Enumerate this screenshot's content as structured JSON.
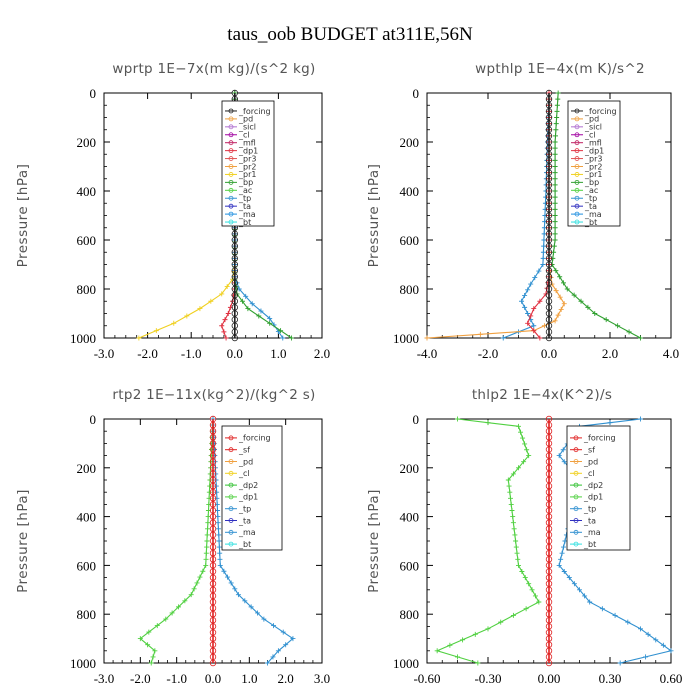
{
  "figure_title": "taus_oob  BUDGET at311E,56N",
  "colors": {
    "forcing": "#202020",
    "pd": "#e0a0e0",
    "sicl": "#b070d0",
    "cl_a": "#a000a0",
    "mfl": "#c02060",
    "dp1_a": "#e03040",
    "pr3": "#e05050",
    "pr2": "#f0a040",
    "pr1": "#f0d020",
    "bp": "#30a030",
    "ac": "#50d040",
    "tp": "#3090d0",
    "ta": "#3030c0",
    "ma": "#2090e0",
    "bt": "#30e0e0",
    "red": "#e02020",
    "orange": "#f0a040",
    "yellow": "#f0d020",
    "green": "#30c030",
    "lightgreen": "#50d040",
    "blue": "#3090d0",
    "navy": "#3030c0",
    "cyan": "#30e0e0"
  },
  "chart_data": [
    {
      "type": "line",
      "title": "wprtp   1E−7x(m kg)/(s^2 kg)",
      "ylabel": "Pressure [hPa]",
      "xlim": [
        -3.0,
        2.0
      ],
      "ylim": [
        1000,
        0
      ],
      "xticks": [
        "-3.0",
        "-2.0",
        "-1.0",
        "0.0",
        "1.0",
        "2.0"
      ],
      "xtick_values": [
        -3.0,
        -2.0,
        -1.0,
        0.0,
        1.0,
        2.0
      ],
      "yticks": [
        "0",
        "200",
        "400",
        "600",
        "800",
        "1000"
      ],
      "ytick_values": [
        0,
        200,
        400,
        600,
        800,
        1000
      ],
      "legend": [
        "_forcing",
        "_pd",
        "_sicl",
        "_cl",
        "_mfl",
        "_dp1",
        "_pr3",
        "_pr2",
        "_pr1",
        "_bp",
        "_ac",
        "_tp",
        "_ta",
        "_ma",
        "_bt"
      ],
      "series": [
        {
          "name": "_pr1",
          "color": "#f0d020",
          "x": [
            0,
            0,
            -0.05,
            -0.3,
            -0.8,
            -1.4,
            -2.2
          ],
          "y": [
            0,
            700,
            760,
            820,
            880,
            940,
            1000
          ]
        },
        {
          "name": "_dp1",
          "color": "#e03040",
          "x": [
            0,
            0,
            -0.05,
            -0.15,
            -0.3,
            -0.2
          ],
          "y": [
            0,
            800,
            850,
            900,
            950,
            1000
          ]
        },
        {
          "name": "_tp",
          "color": "#3090d0",
          "x": [
            0,
            0,
            0.1,
            0.4,
            0.8,
            1.1
          ],
          "y": [
            0,
            750,
            800,
            860,
            920,
            1000
          ]
        },
        {
          "name": "_bp",
          "color": "#30a030",
          "x": [
            0,
            0,
            0.05,
            0.3,
            0.8,
            1.3
          ],
          "y": [
            0,
            760,
            820,
            880,
            940,
            1000
          ]
        },
        {
          "name": "_forcing",
          "color": "#202020",
          "x": [
            0,
            0
          ],
          "y": [
            0,
            1000
          ]
        }
      ]
    },
    {
      "type": "line",
      "title": "wpthlp   1E−4x(m K)/s^2",
      "ylabel": "Pressure [hPa]",
      "xlim": [
        -4.0,
        4.0
      ],
      "ylim": [
        1000,
        0
      ],
      "xticks": [
        "-4.0",
        "-2.0",
        "0.0",
        "2.0",
        "4.0"
      ],
      "xtick_values": [
        -4.0,
        -2.0,
        0.0,
        2.0,
        4.0
      ],
      "yticks": [
        "0",
        "200",
        "400",
        "600",
        "800",
        "1000"
      ],
      "ytick_values": [
        0,
        200,
        400,
        600,
        800,
        1000
      ],
      "legend": [
        "_forcing",
        "_pd",
        "_sicl",
        "_cl",
        "_mfl",
        "_dp1",
        "_pr3",
        "_pr2",
        "_pr1",
        "_bp",
        "_ac",
        "_tp",
        "_ta",
        "_ma",
        "_bt"
      ],
      "series": [
        {
          "name": "_bp",
          "color": "#30a030",
          "x": [
            0.3,
            0.2,
            0.2,
            0.1,
            0.6,
            1.5,
            3.0
          ],
          "y": [
            0,
            200,
            600,
            700,
            800,
            900,
            1000
          ]
        },
        {
          "name": "_tp",
          "color": "#3090d0",
          "x": [
            0,
            -0.1,
            -0.2,
            -0.6,
            -0.9,
            -0.5,
            -1.5
          ],
          "y": [
            0,
            400,
            700,
            780,
            850,
            950,
            1000
          ]
        },
        {
          "name": "_pr2",
          "color": "#f0a040",
          "x": [
            0,
            0,
            0.1,
            0.5,
            0.2,
            -0.5,
            -4.0
          ],
          "y": [
            0,
            700,
            780,
            860,
            930,
            970,
            1000
          ]
        },
        {
          "name": "_dp1",
          "color": "#e03040",
          "x": [
            0,
            0,
            -0.1,
            -0.5,
            -0.7,
            -0.3
          ],
          "y": [
            0,
            750,
            820,
            880,
            940,
            1000
          ]
        },
        {
          "name": "_forcing",
          "color": "#202020",
          "x": [
            0,
            0
          ],
          "y": [
            0,
            1000
          ]
        }
      ]
    },
    {
      "type": "line",
      "title": "rtp2   1E−11x(kg^2)/(kg^2 s)",
      "ylabel": "Pressure [hPa]",
      "xlim": [
        -3.0,
        3.0
      ],
      "ylim": [
        1000,
        0
      ],
      "xticks": [
        "-3.0",
        "-2.0",
        "-1.0",
        "0.0",
        "1.0",
        "2.0",
        "3.0"
      ],
      "xtick_values": [
        -3.0,
        -2.0,
        -1.0,
        0.0,
        1.0,
        2.0,
        3.0
      ],
      "yticks": [
        "0",
        "200",
        "400",
        "600",
        "800",
        "1000"
      ],
      "ytick_values": [
        0,
        200,
        400,
        600,
        800,
        1000
      ],
      "legend": [
        "_forcing",
        "_sf",
        "_pd",
        "_cl",
        "_dp2",
        "_dp1",
        "_tp",
        "_ta",
        "_ma",
        "_bt"
      ],
      "series": [
        {
          "name": "_dp1",
          "color": "#50d040",
          "x": [
            0,
            -0.2,
            -0.6,
            -1.3,
            -2.0,
            -1.6,
            -1.7
          ],
          "y": [
            0,
            600,
            720,
            820,
            900,
            950,
            1000
          ]
        },
        {
          "name": "_tp",
          "color": "#3090d0",
          "x": [
            0,
            0.2,
            0.7,
            1.4,
            2.2,
            1.8,
            1.5
          ],
          "y": [
            0,
            600,
            720,
            820,
            900,
            950,
            1000
          ]
        },
        {
          "name": "_forcing",
          "color": "#e02020",
          "x": [
            0,
            0
          ],
          "y": [
            0,
            1000
          ]
        }
      ]
    },
    {
      "type": "line",
      "title": "thlp2   1E−4x(K^2)/s",
      "ylabel": "Pressure [hPa]",
      "xlim": [
        -0.6,
        0.6
      ],
      "ylim": [
        1000,
        0
      ],
      "xticks": [
        "-0.60",
        "-0.30",
        "0.00",
        "0.30",
        "0.60"
      ],
      "xtick_values": [
        -0.6,
        -0.3,
        0.0,
        0.3,
        0.6
      ],
      "yticks": [
        "0",
        "200",
        "400",
        "600",
        "800",
        "1000"
      ],
      "ytick_values": [
        0,
        200,
        400,
        600,
        800,
        1000
      ],
      "legend": [
        "_forcing",
        "_sf",
        "_pd",
        "_cl",
        "_dp2",
        "_dp1",
        "_tp",
        "_ta",
        "_ma",
        "_bt"
      ],
      "series": [
        {
          "name": "_dp1",
          "color": "#50d040",
          "x": [
            -0.45,
            -0.15,
            -0.1,
            -0.2,
            -0.15,
            -0.05,
            -0.3,
            -0.55,
            -0.35
          ],
          "y": [
            0,
            30,
            150,
            250,
            600,
            750,
            860,
            950,
            1000
          ]
        },
        {
          "name": "_tp",
          "color": "#3090d0",
          "x": [
            0.45,
            0.15,
            0.05,
            0.15,
            0.05,
            0.2,
            0.45,
            0.6,
            0.35
          ],
          "y": [
            0,
            30,
            150,
            250,
            600,
            750,
            860,
            950,
            1000
          ]
        },
        {
          "name": "_forcing",
          "color": "#e02020",
          "x": [
            0,
            0
          ],
          "y": [
            0,
            1000
          ]
        }
      ]
    }
  ]
}
